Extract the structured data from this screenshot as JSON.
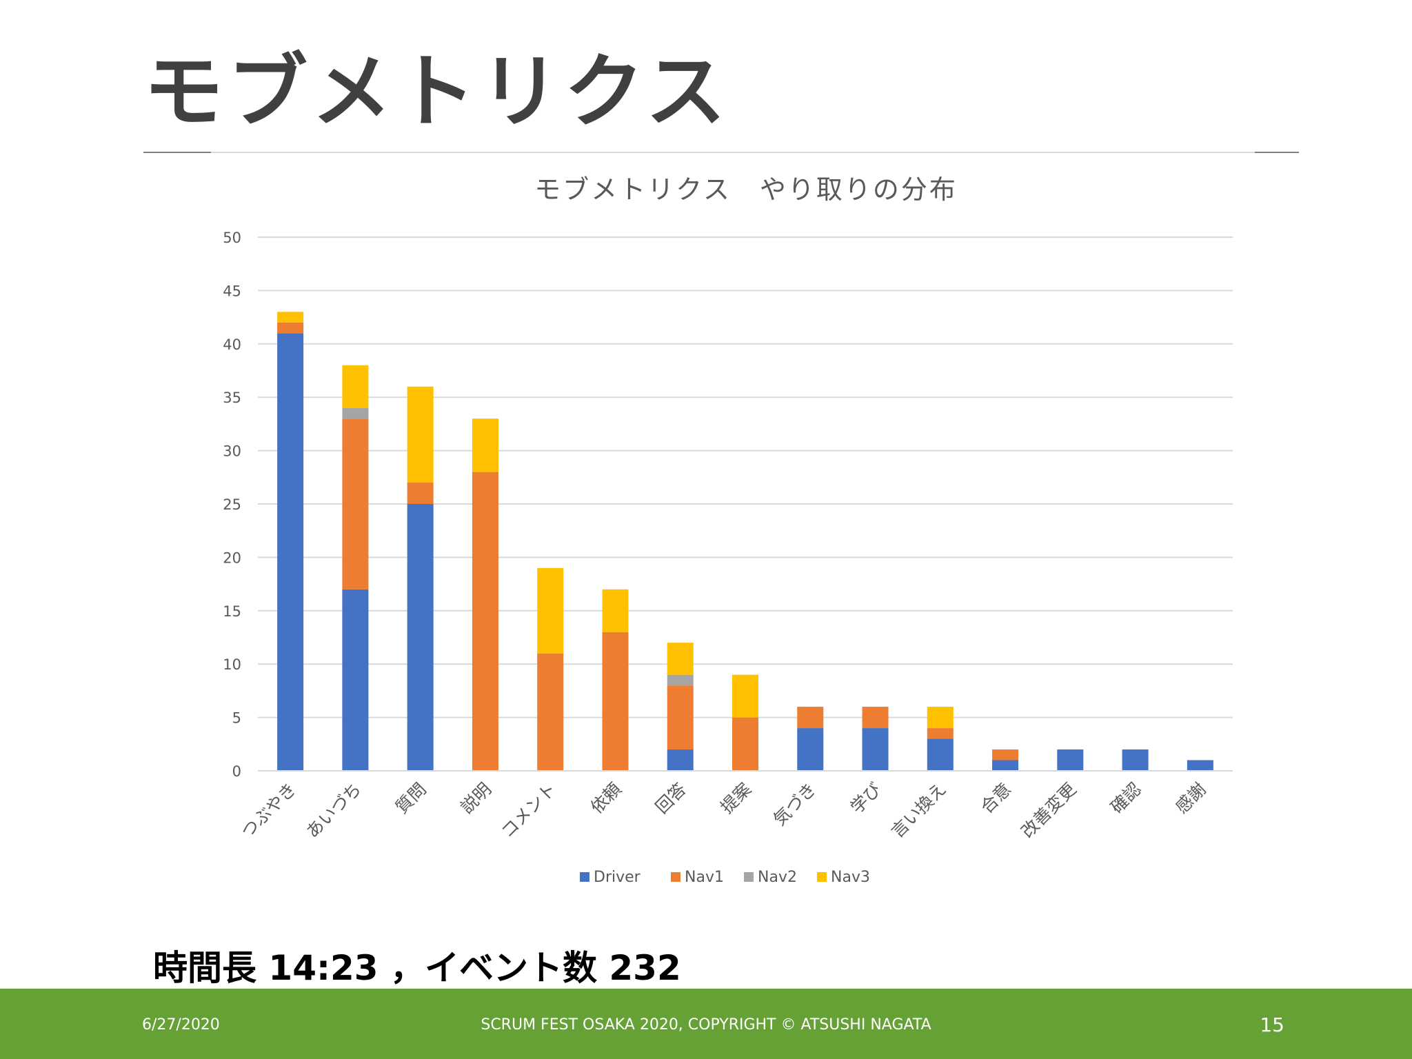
{
  "slide": {
    "title": "モブメトリクス",
    "summary": "時間長 14:23 ，イベント数 232",
    "footer": {
      "date": "6/27/2020",
      "copyright": "SCRUM FEST OSAKA 2020, COPYRIGHT © ATSUSHI NAGATA",
      "page": "15"
    }
  },
  "colors": {
    "Driver": "#4472c4",
    "Nav1": "#ed7d31",
    "Nav2": "#a5a5a5",
    "Nav3": "#ffc000",
    "footer": "#65a135"
  },
  "chart_data": {
    "type": "bar",
    "stacked": true,
    "title": "モブメトリクス　やり取りの分布",
    "xlabel": "",
    "ylabel": "",
    "ylim": [
      0,
      50
    ],
    "yticks": [
      0,
      5,
      10,
      15,
      20,
      25,
      30,
      35,
      40,
      45,
      50
    ],
    "grid": true,
    "legend_position": "bottom",
    "categories": [
      "つぶやき",
      "あいづち",
      "質問",
      "説明",
      "コメント",
      "依頼",
      "回答",
      "提案",
      "気づき",
      "学び",
      "言い換え",
      "合意",
      "改善変更",
      "確認",
      "感謝"
    ],
    "series": [
      {
        "name": "Driver",
        "values": [
          41,
          17,
          25,
          0,
          0,
          0,
          2,
          0,
          4,
          4,
          3,
          1,
          2,
          2,
          1
        ]
      },
      {
        "name": "Nav1",
        "values": [
          1,
          16,
          2,
          28,
          11,
          13,
          6,
          5,
          2,
          2,
          1,
          1,
          0,
          0,
          0
        ]
      },
      {
        "name": "Nav2",
        "values": [
          0,
          1,
          0,
          0,
          0,
          0,
          1,
          0,
          0,
          0,
          0,
          0,
          0,
          0,
          0
        ]
      },
      {
        "name": "Nav3",
        "values": [
          1,
          4,
          9,
          5,
          8,
          4,
          3,
          4,
          0,
          0,
          2,
          0,
          0,
          0,
          0
        ]
      }
    ]
  }
}
